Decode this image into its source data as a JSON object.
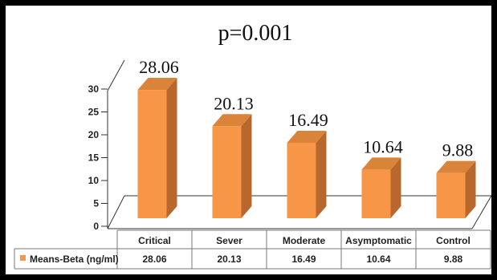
{
  "chart_data": {
    "type": "bar",
    "title": "p=0.001",
    "categories": [
      "Critical",
      "Sever",
      "Moderate",
      "Asymptomatic",
      "Control"
    ],
    "series": [
      {
        "name": "Means-Beta (ng/ml)",
        "values": [
          28.06,
          20.13,
          16.49,
          10.64,
          9.88
        ]
      }
    ],
    "data_labels": [
      "28.06",
      "20.13",
      "16.49",
      "10.64",
      "9.88"
    ],
    "yticks": [
      "0",
      "5",
      "10",
      "15",
      "20",
      "25",
      "30"
    ],
    "ylim": [
      0,
      30
    ],
    "xlabel": "",
    "ylabel": "",
    "grid": false,
    "legend": "data-table-bottom",
    "style": "3d-columns",
    "colors": {
      "front": "#F79646",
      "side": "#B8682C",
      "top": "#D98439",
      "frame": "#000000"
    }
  }
}
